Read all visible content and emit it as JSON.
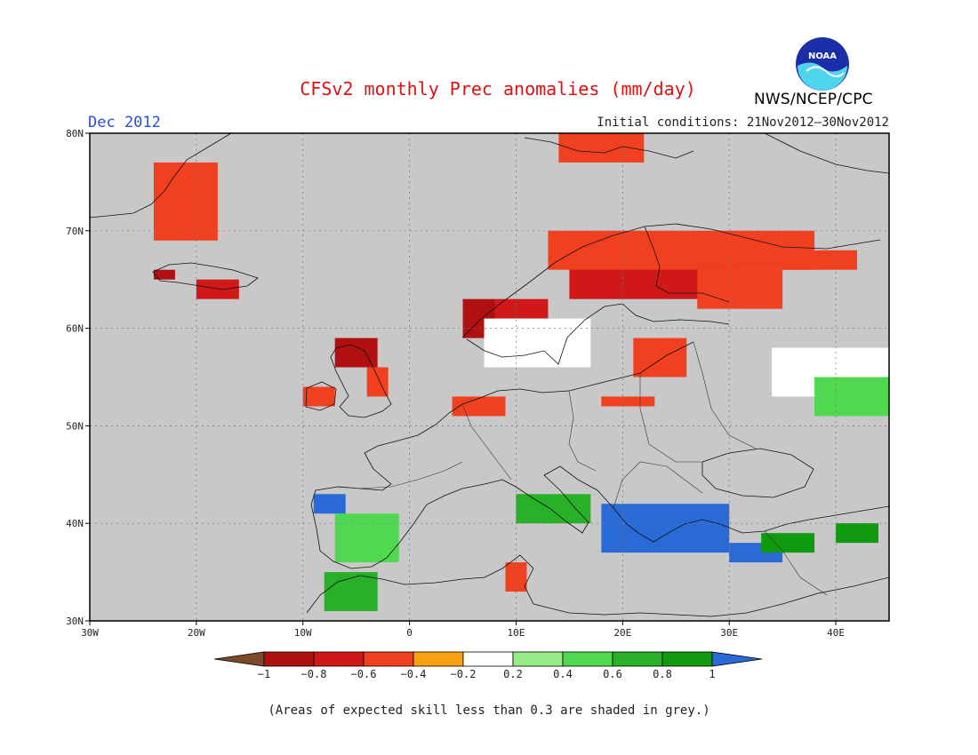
{
  "header": {
    "title": "CFSv2 monthly Prec anomalies (mm/day)",
    "month": "Dec 2012",
    "initial_conditions": "Initial conditions: 21Nov2012–30Nov2012",
    "agency": "NWS/NCEP/CPC",
    "logo_text": "NOAA"
  },
  "footer": {
    "note": "(Areas of expected skill less than 0.3 are shaded in grey.)"
  },
  "colors": {
    "grey_skill": "#c8c8c8",
    "ocean_bg": "#c8c8c8",
    "title_red": "#e01010",
    "month_blue": "#2a4fd6"
  },
  "colorbar": {
    "labels": [
      "−1",
      "−0.8",
      "−0.6",
      "−0.4",
      "−0.2",
      "0.2",
      "0.4",
      "0.6",
      "0.8",
      "1"
    ],
    "colors": [
      "#7a4a2a",
      "#b01010",
      "#d01818",
      "#f04020",
      "#f8a010",
      "#ffffff",
      "#98ec88",
      "#50d850",
      "#28b028",
      "#109a10",
      "#2a6ad6"
    ]
  },
  "map": {
    "lat_labels": [
      "80N",
      "70N",
      "60N",
      "50N",
      "40N",
      "30N"
    ],
    "lon_labels": [
      "30W",
      "20W",
      "10W",
      "0",
      "10E",
      "20E",
      "30E",
      "40E"
    ],
    "lat_range": [
      30,
      80
    ],
    "lon_range": [
      -30,
      45
    ]
  },
  "anomaly_regions": [
    {
      "name": "svalbard",
      "lon": [
        14,
        22
      ],
      "lat": [
        77,
        80
      ],
      "value": -0.4
    },
    {
      "name": "greenland-east",
      "lon": [
        -24,
        -18
      ],
      "lat": [
        69,
        77
      ],
      "value": -0.4
    },
    {
      "name": "iceland-west",
      "lon": [
        -24,
        -22
      ],
      "lat": [
        65,
        66
      ],
      "value": -0.8
    },
    {
      "name": "iceland-south",
      "lon": [
        -20,
        -16
      ],
      "lat": [
        63,
        65
      ],
      "value": -0.6
    },
    {
      "name": "norway-west",
      "lon": [
        5,
        8
      ],
      "lat": [
        59,
        63
      ],
      "value": -0.8
    },
    {
      "name": "norway-central",
      "lon": [
        8,
        13
      ],
      "lat": [
        61,
        63
      ],
      "value": -0.6
    },
    {
      "name": "scandinavia-north",
      "lon": [
        15,
        31
      ],
      "lat": [
        63,
        69
      ],
      "value": -0.6
    },
    {
      "name": "scandinavia-north-edge",
      "lon": [
        13,
        38
      ],
      "lat": [
        66,
        70
      ],
      "value": -0.4
    },
    {
      "name": "kola",
      "lon": [
        31,
        42
      ],
      "lat": [
        66,
        68
      ],
      "value": -0.4
    },
    {
      "name": "finland-east",
      "lon": [
        27,
        35
      ],
      "lat": [
        62,
        66
      ],
      "value": -0.4
    },
    {
      "name": "baltic",
      "lon": [
        21,
        26
      ],
      "lat": [
        55,
        59
      ],
      "value": -0.4
    },
    {
      "name": "scotland",
      "lon": [
        -7,
        -3
      ],
      "lat": [
        56,
        59
      ],
      "value": -0.8
    },
    {
      "name": "britain-east",
      "lon": [
        -4,
        -2
      ],
      "lat": [
        53,
        56
      ],
      "value": -0.4
    },
    {
      "name": "ireland",
      "lon": [
        -10,
        -7
      ],
      "lat": [
        52,
        54
      ],
      "value": -0.4
    },
    {
      "name": "benelux",
      "lon": [
        4,
        9
      ],
      "lat": [
        51,
        53
      ],
      "value": -0.4
    },
    {
      "name": "poland",
      "lon": [
        18,
        23
      ],
      "lat": [
        52,
        53
      ],
      "value": -0.4
    },
    {
      "name": "russia-white",
      "lon": [
        34,
        45
      ],
      "lat": [
        53,
        58
      ],
      "value": 0.0
    },
    {
      "name": "russia-green",
      "lon": [
        38,
        45
      ],
      "lat": [
        51,
        55
      ],
      "value": 0.4
    },
    {
      "name": "scandinavia-south",
      "lon": [
        7,
        17
      ],
      "lat": [
        56,
        61
      ],
      "value": 0.0
    },
    {
      "name": "iberia-green",
      "lon": [
        -7,
        -1
      ],
      "lat": [
        36,
        41
      ],
      "value": 0.4
    },
    {
      "name": "iberia-blue",
      "lon": [
        -9,
        -6
      ],
      "lat": [
        41,
        43
      ],
      "value": 1.0
    },
    {
      "name": "balkans-blue",
      "lon": [
        18,
        30
      ],
      "lat": [
        37,
        42
      ],
      "value": 1.0
    },
    {
      "name": "anatolia-blue",
      "lon": [
        30,
        35
      ],
      "lat": [
        36,
        38
      ],
      "value": 1.0
    },
    {
      "name": "anatolia-green",
      "lon": [
        33,
        38
      ],
      "lat": [
        37,
        39
      ],
      "value": 0.8
    },
    {
      "name": "east-turkey",
      "lon": [
        40,
        44
      ],
      "lat": [
        38,
        40
      ],
      "value": 0.8
    },
    {
      "name": "italy",
      "lon": [
        10,
        17
      ],
      "lat": [
        40,
        43
      ],
      "value": 0.6
    },
    {
      "name": "morocco",
      "lon": [
        -8,
        -3
      ],
      "lat": [
        31,
        35
      ],
      "value": 0.6
    },
    {
      "name": "tunisia",
      "lon": [
        9,
        11
      ],
      "lat": [
        33,
        36
      ],
      "value": -0.4
    }
  ]
}
